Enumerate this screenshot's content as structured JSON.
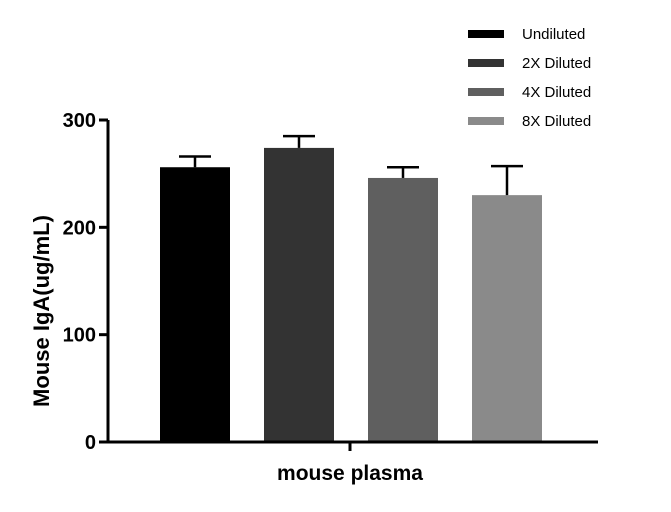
{
  "chart_data": {
    "type": "bar",
    "categories": [
      "mouse plasma"
    ],
    "series": [
      {
        "name": "Undiluted",
        "values": [
          256
        ],
        "error": [
          10
        ],
        "color": "#000000"
      },
      {
        "name": "2X Diluted",
        "values": [
          274
        ],
        "error": [
          11
        ],
        "color": "#333333"
      },
      {
        "name": "4X Diluted",
        "values": [
          246
        ],
        "error": [
          10
        ],
        "color": "#5f5f5f"
      },
      {
        "name": "8X Diluted",
        "values": [
          230
        ],
        "error": [
          27
        ],
        "color": "#8a8a8a"
      }
    ],
    "title": "",
    "xlabel": "mouse plasma",
    "ylabel": "Mouse IgA(ug/mL)",
    "ylim": [
      0,
      300
    ],
    "yticks": [
      0,
      100,
      200,
      300
    ],
    "legend_position": "top-right",
    "grid": false
  }
}
